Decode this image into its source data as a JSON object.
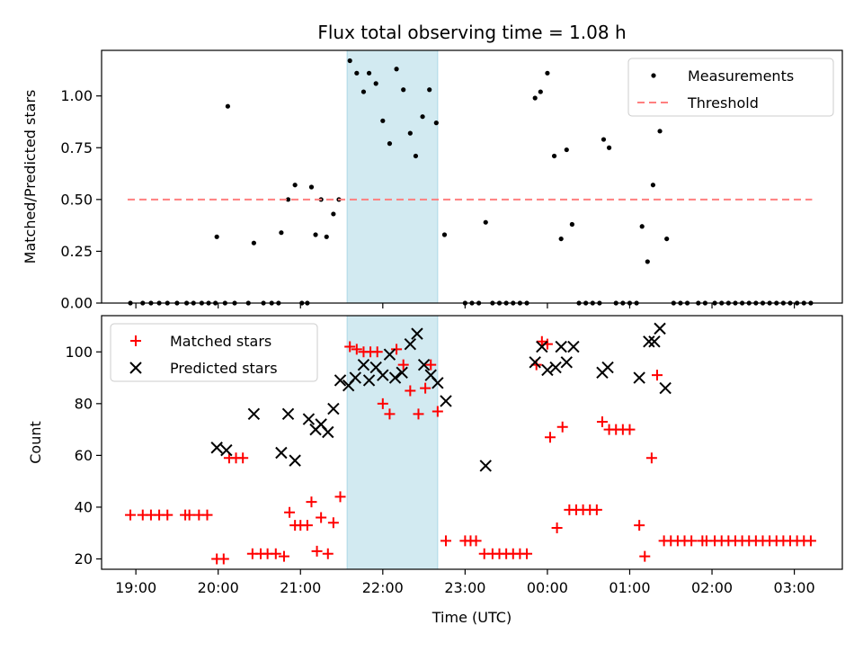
{
  "chart_data": [
    {
      "type": "scatter",
      "title": "Flux total observing time = 1.08 h",
      "xlabel": "",
      "ylabel": "Matched/Predicted stars",
      "xlim": [
        "18:35",
        "03:35"
      ],
      "ylim": [
        0,
        1.22
      ],
      "x_ticks": [
        "19:00",
        "20:00",
        "21:00",
        "22:00",
        "23:00",
        "00:00",
        "01:00",
        "02:00",
        "03:00"
      ],
      "y_ticks": [
        0.0,
        0.25,
        0.5,
        0.75,
        1.0
      ],
      "y_tick_labels": [
        "0.00",
        "0.25",
        "0.50",
        "0.75",
        "1.00"
      ],
      "legend": {
        "position": "top-right",
        "entries": [
          "Measurements",
          "Threshold"
        ]
      },
      "shaded_region": {
        "x0": "21:34",
        "x1": "22:40",
        "color": "#add8e6"
      },
      "series": [
        {
          "name": "Measurements",
          "marker": "dot",
          "color": "#000000",
          "points": [
            [
              "18:56",
              0
            ],
            [
              "19:05",
              0
            ],
            [
              "19:11",
              0
            ],
            [
              "19:17",
              0
            ],
            [
              "19:23",
              0
            ],
            [
              "19:30",
              0
            ],
            [
              "19:37",
              0
            ],
            [
              "19:42",
              0
            ],
            [
              "19:48",
              0
            ],
            [
              "19:53",
              0
            ],
            [
              "19:58",
              0
            ],
            [
              "19:59",
              0.32
            ],
            [
              "20:05",
              0
            ],
            [
              "20:07",
              0.95
            ],
            [
              "20:12",
              0
            ],
            [
              "20:22",
              0
            ],
            [
              "20:26",
              0.29
            ],
            [
              "20:33",
              0
            ],
            [
              "20:39",
              0
            ],
            [
              "20:44",
              0
            ],
            [
              "20:46",
              0.34
            ],
            [
              "20:51",
              0.5
            ],
            [
              "20:56",
              0.57
            ],
            [
              "21:01",
              0
            ],
            [
              "21:05",
              0
            ],
            [
              "21:08",
              0.56
            ],
            [
              "21:11",
              0.33
            ],
            [
              "21:15",
              0.5
            ],
            [
              "21:19",
              0.32
            ],
            [
              "21:24",
              0.43
            ],
            [
              "21:28",
              0.5
            ],
            [
              "21:36",
              1.17
            ],
            [
              "21:41",
              1.11
            ],
            [
              "21:46",
              1.02
            ],
            [
              "21:50",
              1.11
            ],
            [
              "21:55",
              1.06
            ],
            [
              "22:00",
              0.88
            ],
            [
              "22:05",
              0.77
            ],
            [
              "22:10",
              1.13
            ],
            [
              "22:15",
              1.03
            ],
            [
              "22:20",
              0.82
            ],
            [
              "22:24",
              0.71
            ],
            [
              "22:29",
              0.9
            ],
            [
              "22:34",
              1.03
            ],
            [
              "22:39",
              0.87
            ],
            [
              "22:45",
              0.33
            ],
            [
              "23:00",
              0
            ],
            [
              "23:05",
              0
            ],
            [
              "23:10",
              0
            ],
            [
              "23:15",
              0.39
            ],
            [
              "23:20",
              0
            ],
            [
              "23:25",
              0
            ],
            [
              "23:30",
              0
            ],
            [
              "23:35",
              0
            ],
            [
              "23:40",
              0
            ],
            [
              "23:45",
              0
            ],
            [
              "23:51",
              0.99
            ],
            [
              "23:55",
              1.02
            ],
            [
              "24:00",
              1.11
            ],
            [
              "24:05",
              0.71
            ],
            [
              "24:10",
              0.31
            ],
            [
              "24:14",
              0.74
            ],
            [
              "24:18",
              0.38
            ],
            [
              "24:23",
              0
            ],
            [
              "24:28",
              0
            ],
            [
              "24:33",
              0
            ],
            [
              "24:38",
              0
            ],
            [
              "24:41",
              0.79
            ],
            [
              "24:45",
              0.75
            ],
            [
              "24:50",
              0
            ],
            [
              "24:55",
              0
            ],
            [
              "25:00",
              0
            ],
            [
              "25:05",
              0
            ],
            [
              "25:09",
              0.37
            ],
            [
              "25:13",
              0.2
            ],
            [
              "25:17",
              0.57
            ],
            [
              "25:22",
              0.83
            ],
            [
              "25:27",
              0.31
            ],
            [
              "25:32",
              0
            ],
            [
              "25:37",
              0
            ],
            [
              "25:42",
              0
            ],
            [
              "25:50",
              0
            ],
            [
              "25:55",
              0
            ],
            [
              "26:02",
              0
            ],
            [
              "26:07",
              0
            ],
            [
              "26:12",
              0
            ],
            [
              "26:17",
              0
            ],
            [
              "26:22",
              0
            ],
            [
              "26:27",
              0
            ],
            [
              "26:32",
              0
            ],
            [
              "26:37",
              0
            ],
            [
              "26:42",
              0
            ],
            [
              "26:47",
              0
            ],
            [
              "26:52",
              0
            ],
            [
              "26:57",
              0
            ],
            [
              "27:02",
              0
            ],
            [
              "27:07",
              0
            ],
            [
              "27:12",
              0
            ]
          ]
        },
        {
          "name": "Threshold",
          "marker": "dashed-line",
          "color": "#ff7f7f",
          "points": [
            [
              "18:54",
              0.5
            ],
            [
              "27:13",
              0.5
            ]
          ]
        }
      ]
    },
    {
      "type": "scatter",
      "title": "",
      "xlabel": "Time (UTC)",
      "ylabel": "Count",
      "xlim": [
        "18:35",
        "03:35"
      ],
      "ylim": [
        16,
        114
      ],
      "x_ticks": [
        "19:00",
        "20:00",
        "21:00",
        "22:00",
        "23:00",
        "00:00",
        "01:00",
        "02:00",
        "03:00"
      ],
      "y_ticks": [
        20,
        40,
        60,
        80,
        100
      ],
      "y_tick_labels": [
        "20",
        "40",
        "60",
        "80",
        "100"
      ],
      "legend": {
        "position": "top-left",
        "entries": [
          "Matched stars",
          "Predicted stars"
        ]
      },
      "shaded_region": {
        "x0": "21:34",
        "x1": "22:40",
        "color": "#add8e6"
      },
      "series": [
        {
          "name": "Matched stars",
          "marker": "plus",
          "color": "#ff0000",
          "points": [
            [
              "18:56",
              37
            ],
            [
              "19:05",
              37
            ],
            [
              "19:11",
              37
            ],
            [
              "19:17",
              37
            ],
            [
              "19:23",
              37
            ],
            [
              "19:36",
              37
            ],
            [
              "19:39",
              37
            ],
            [
              "19:46",
              37
            ],
            [
              "19:52",
              37
            ],
            [
              "19:59",
              20
            ],
            [
              "20:04",
              20
            ],
            [
              "20:08",
              59
            ],
            [
              "20:13",
              59
            ],
            [
              "20:18",
              59
            ],
            [
              "20:25",
              22
            ],
            [
              "20:31",
              22
            ],
            [
              "20:36",
              22
            ],
            [
              "20:42",
              22
            ],
            [
              "20:48",
              21
            ],
            [
              "20:52",
              38
            ],
            [
              "20:56",
              33
            ],
            [
              "21:00",
              33
            ],
            [
              "21:05",
              33
            ],
            [
              "21:08",
              42
            ],
            [
              "21:12",
              23
            ],
            [
              "21:15",
              36
            ],
            [
              "21:20",
              22
            ],
            [
              "21:24",
              34
            ],
            [
              "21:29",
              44
            ],
            [
              "21:36",
              102
            ],
            [
              "21:41",
              101
            ],
            [
              "21:46",
              100
            ],
            [
              "21:51",
              100
            ],
            [
              "21:56",
              100
            ],
            [
              "22:00",
              80
            ],
            [
              "22:05",
              76
            ],
            [
              "22:10",
              101
            ],
            [
              "22:15",
              95
            ],
            [
              "22:20",
              85
            ],
            [
              "22:26",
              76
            ],
            [
              "22:31",
              86
            ],
            [
              "22:35",
              95
            ],
            [
              "22:40",
              77
            ],
            [
              "22:46",
              27
            ],
            [
              "23:00",
              27
            ],
            [
              "23:04",
              27
            ],
            [
              "23:08",
              27
            ],
            [
              "23:14",
              22
            ],
            [
              "23:20",
              22
            ],
            [
              "23:25",
              22
            ],
            [
              "23:30",
              22
            ],
            [
              "23:35",
              22
            ],
            [
              "23:40",
              22
            ],
            [
              "23:45",
              22
            ],
            [
              "23:52",
              95
            ],
            [
              "23:56",
              104
            ],
            [
              "24:00",
              103
            ],
            [
              "24:02",
              67
            ],
            [
              "24:07",
              32
            ],
            [
              "24:11",
              71
            ],
            [
              "24:16",
              39
            ],
            [
              "24:21",
              39
            ],
            [
              "24:26",
              39
            ],
            [
              "24:31",
              39
            ],
            [
              "24:36",
              39
            ],
            [
              "24:40",
              73
            ],
            [
              "24:45",
              70
            ],
            [
              "24:50",
              70
            ],
            [
              "24:55",
              70
            ],
            [
              "25:00",
              70
            ],
            [
              "25:07",
              33
            ],
            [
              "25:11",
              21
            ],
            [
              "25:16",
              59
            ],
            [
              "25:20",
              91
            ],
            [
              "25:25",
              27
            ],
            [
              "25:30",
              27
            ],
            [
              "25:35",
              27
            ],
            [
              "25:40",
              27
            ],
            [
              "25:45",
              27
            ],
            [
              "25:53",
              27
            ],
            [
              "25:56",
              27
            ],
            [
              "26:02",
              27
            ],
            [
              "26:07",
              27
            ],
            [
              "26:12",
              27
            ],
            [
              "26:17",
              27
            ],
            [
              "26:22",
              27
            ],
            [
              "26:27",
              27
            ],
            [
              "26:32",
              27
            ],
            [
              "26:37",
              27
            ],
            [
              "26:42",
              27
            ],
            [
              "26:47",
              27
            ],
            [
              "26:52",
              27
            ],
            [
              "26:57",
              27
            ],
            [
              "27:02",
              27
            ],
            [
              "27:07",
              27
            ],
            [
              "27:12",
              27
            ]
          ]
        },
        {
          "name": "Predicted stars",
          "marker": "x",
          "color": "#000000",
          "points": [
            [
              "19:59",
              63
            ],
            [
              "20:06",
              62
            ],
            [
              "20:26",
              76
            ],
            [
              "20:46",
              61
            ],
            [
              "20:51",
              76
            ],
            [
              "20:56",
              58
            ],
            [
              "21:06",
              74
            ],
            [
              "21:11",
              70
            ],
            [
              "21:15",
              72
            ],
            [
              "21:20",
              69
            ],
            [
              "21:24",
              78
            ],
            [
              "21:29",
              89
            ],
            [
              "21:35",
              87
            ],
            [
              "21:40",
              90
            ],
            [
              "21:46",
              95
            ],
            [
              "21:50",
              89
            ],
            [
              "21:55",
              94
            ],
            [
              "22:00",
              91
            ],
            [
              "22:05",
              99
            ],
            [
              "22:09",
              90
            ],
            [
              "22:14",
              92
            ],
            [
              "22:20",
              103
            ],
            [
              "22:25",
              107
            ],
            [
              "22:30",
              95
            ],
            [
              "22:35",
              91
            ],
            [
              "22:40",
              88
            ],
            [
              "22:46",
              81
            ],
            [
              "23:15",
              56
            ],
            [
              "23:51",
              96
            ],
            [
              "23:56",
              102
            ],
            [
              "24:00",
              93
            ],
            [
              "24:06",
              94
            ],
            [
              "24:10",
              102
            ],
            [
              "24:14",
              96
            ],
            [
              "24:19",
              102
            ],
            [
              "24:40",
              92
            ],
            [
              "24:44",
              94
            ],
            [
              "25:07",
              90
            ],
            [
              "25:14",
              104
            ],
            [
              "25:18",
              104
            ],
            [
              "25:22",
              109
            ],
            [
              "25:26",
              86
            ]
          ]
        }
      ]
    }
  ]
}
